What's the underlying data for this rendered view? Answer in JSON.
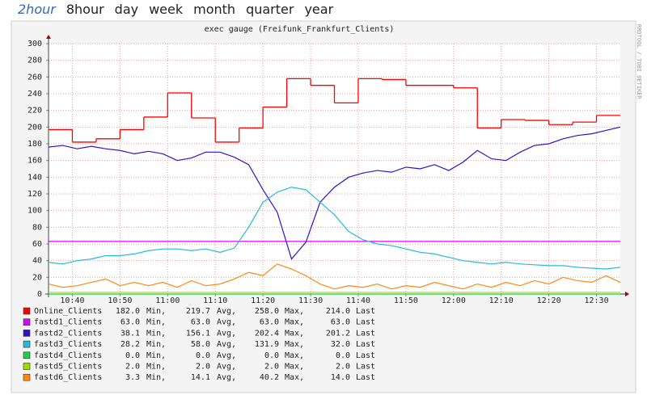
{
  "nav": {
    "tabs": [
      "2hour",
      "8hour",
      "day",
      "week",
      "month",
      "quarter",
      "year"
    ],
    "active": 0
  },
  "chart_data": {
    "type": "line",
    "title": "exec gauge (Freifunk_Frankfurt_Clients)",
    "watermark": "RRDTOOL / TOBI OETIKER",
    "x": [
      "10:35",
      "10:38",
      "10:41",
      "10:44",
      "10:47",
      "10:50",
      "10:53",
      "10:56",
      "10:59",
      "11:02",
      "11:05",
      "11:08",
      "11:11",
      "11:14",
      "11:17",
      "11:20",
      "11:23",
      "11:26",
      "11:29",
      "11:32",
      "11:35",
      "11:38",
      "11:41",
      "11:44",
      "11:47",
      "11:50",
      "11:53",
      "11:56",
      "11:59",
      "12:02",
      "12:05",
      "12:08",
      "12:11",
      "12:14",
      "12:17",
      "12:20",
      "12:23",
      "12:26",
      "12:29",
      "12:32",
      "12:35"
    ],
    "xlim": [
      "10:35",
      "12:35"
    ],
    "xticks": [
      "10:40",
      "10:50",
      "11:00",
      "11:10",
      "11:20",
      "11:30",
      "11:40",
      "11:50",
      "12:00",
      "12:10",
      "12:20",
      "12:30"
    ],
    "ylim": [
      0,
      300
    ],
    "yticks": [
      0,
      20,
      40,
      60,
      80,
      100,
      120,
      140,
      160,
      180,
      200,
      220,
      240,
      260,
      280,
      300
    ],
    "grid": true,
    "legend_stat_labels": [
      "Min,",
      "Avg,",
      "Max,",
      "Last"
    ],
    "series": [
      {
        "name": "Online_Clients",
        "color": "#ff0000",
        "step": true,
        "x": [
          "10:35",
          "10:40",
          "10:45",
          "10:50",
          "10:55",
          "11:00",
          "11:05",
          "11:10",
          "11:15",
          "11:20",
          "11:25",
          "11:30",
          "11:35",
          "11:40",
          "11:45",
          "11:50",
          "11:55",
          "12:00",
          "12:05",
          "12:10",
          "12:15",
          "12:20",
          "12:25",
          "12:30"
        ],
        "values": [
          197,
          182,
          186,
          197,
          212,
          241,
          211,
          182,
          199,
          224,
          258,
          250,
          229,
          258,
          257,
          250,
          250,
          247,
          199,
          209,
          208,
          203,
          206,
          214
        ],
        "stats": [
          "182.0",
          "219.7",
          "258.0",
          "214.0"
        ]
      },
      {
        "name": "fastd1_Clients",
        "color": "#dd00ff",
        "x": [
          "10:35",
          "12:35"
        ],
        "values": [
          63,
          63
        ],
        "stats": [
          "63.0",
          "63.0",
          "63.0",
          "63.0"
        ]
      },
      {
        "name": "fastd2_Clients",
        "color": "#3311cc",
        "values": [
          176,
          178,
          174,
          177,
          174,
          172,
          168,
          171,
          168,
          160,
          163,
          170,
          170,
          164,
          155,
          125,
          98,
          42,
          62,
          110,
          128,
          140,
          145,
          148,
          146,
          152,
          150,
          155,
          148,
          158,
          172,
          162,
          160,
          170,
          178,
          180,
          186,
          190,
          192,
          196,
          200
        ],
        "stats": [
          "38.1",
          "156.1",
          "202.4",
          "201.2"
        ]
      },
      {
        "name": "fastd3_Clients",
        "color": "#22bbdd",
        "values": [
          38,
          36,
          40,
          42,
          46,
          46,
          48,
          52,
          54,
          54,
          52,
          54,
          50,
          55,
          80,
          110,
          122,
          128,
          125,
          110,
          95,
          75,
          65,
          60,
          58,
          54,
          50,
          48,
          44,
          40,
          38,
          36,
          38,
          36,
          35,
          34,
          34,
          32,
          31,
          30,
          32
        ],
        "stats": [
          "28.2",
          "58.0",
          "131.9",
          "32.0"
        ]
      },
      {
        "name": "fastd4_Clients",
        "color": "#22cc44",
        "x": [
          "10:35",
          "12:35"
        ],
        "values": [
          0,
          0
        ],
        "stats": [
          "0.0",
          "0.0",
          "0.0",
          "0.0"
        ]
      },
      {
        "name": "fastd5_Clients",
        "color": "#99dd00",
        "x": [
          "10:35",
          "12:35"
        ],
        "values": [
          2,
          2
        ],
        "stats": [
          "2.0",
          "2.0",
          "2.0",
          "2.0"
        ]
      },
      {
        "name": "fastd6_Clients",
        "color": "#ff8811",
        "values": [
          12,
          8,
          10,
          14,
          18,
          10,
          14,
          10,
          14,
          8,
          16,
          10,
          12,
          18,
          26,
          22,
          36,
          30,
          22,
          12,
          6,
          10,
          8,
          12,
          6,
          10,
          8,
          14,
          10,
          6,
          12,
          8,
          14,
          10,
          16,
          12,
          20,
          16,
          14,
          22,
          14
        ],
        "stats": [
          "3.3",
          "14.1",
          "40.2",
          "14.0"
        ]
      }
    ]
  }
}
